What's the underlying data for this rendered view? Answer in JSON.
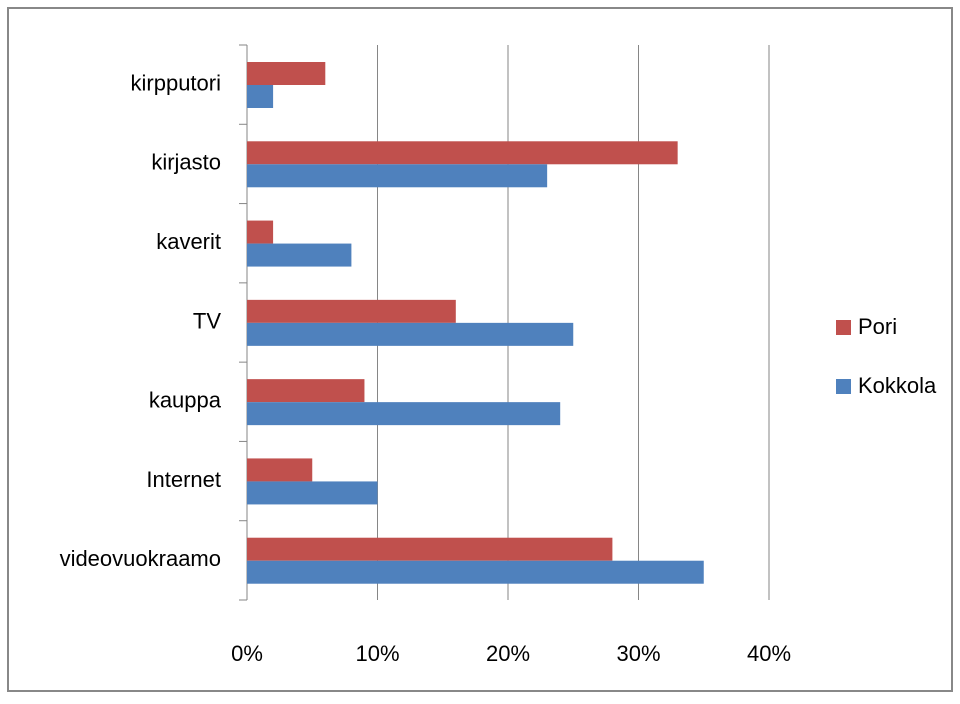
{
  "chart_data": {
    "type": "hbar",
    "categories": [
      "kirpputori",
      "kirjasto",
      "kaverit",
      "TV",
      "kauppa",
      "Internet",
      "videovuokraamo"
    ],
    "series": [
      {
        "name": "Pori",
        "color": "#c0504d",
        "values": [
          6,
          33,
          2,
          16,
          9,
          5,
          28
        ]
      },
      {
        "name": "Kokkola",
        "color": "#4f81bd",
        "values": [
          2,
          23,
          8,
          25,
          24,
          10,
          35
        ]
      }
    ],
    "xlim": [
      0,
      40
    ],
    "xticks": [
      {
        "value": 0,
        "label": "0%"
      },
      {
        "value": 10,
        "label": "10%"
      },
      {
        "value": 20,
        "label": "20%"
      },
      {
        "value": 30,
        "label": "30%"
      },
      {
        "value": 40,
        "label": "40%"
      }
    ],
    "grid": true,
    "legend": "right"
  }
}
